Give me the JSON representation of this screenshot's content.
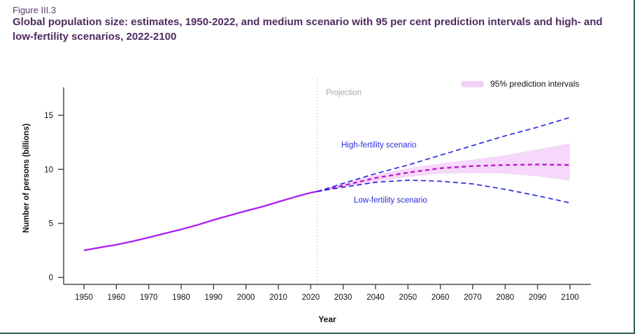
{
  "figure": {
    "label": "Figure III.3",
    "title": "Global population size: estimates, 1950-2022, and medium scenario with 95 per cent prediction intervals and high- and low-fertility scenarios, 2022-2100"
  },
  "legend": {
    "pi_label": "95% prediction intervals"
  },
  "annotations": {
    "projection": "Projection",
    "high_fertility": "High-fertility scenario",
    "low_fertility": "Low-fertility scenario"
  },
  "colors": {
    "title_purple": "#4f2b60",
    "figure_label_purple": "#5d3a73",
    "estimates_line": "#ad1df0",
    "medium_line": "#c517c9",
    "fertility_lines_blue": "#2b2be0",
    "prediction_band": "#f5d8fa",
    "legend_swatch": "#f2cff7",
    "projection_gray": "#a9a9a9",
    "axis_gray": "#4d4d4d",
    "frame_green": "#33604f"
  },
  "chart_data": {
    "type": "line",
    "title": "Global population size: estimates, 1950-2022, and medium scenario with 95 per cent prediction intervals and high- and low-fertility scenarios, 2022-2100",
    "xlabel": "Year",
    "ylabel": "Number of persons (billions)",
    "xlim": [
      1944,
      2106
    ],
    "ylim": [
      0,
      18.3
    ],
    "x_ticks": [
      1950,
      1960,
      1970,
      1980,
      1990,
      2000,
      2010,
      2020,
      2030,
      2040,
      2050,
      2060,
      2070,
      2080,
      2090,
      2100
    ],
    "y_ticks": [
      0,
      5,
      10,
      15
    ],
    "grid": false,
    "legend_position": "top-right",
    "projection_start_year": 2022,
    "series": [
      {
        "name": "Estimates, 1950-2022",
        "role": "estimates",
        "style": "solid",
        "color": "#ad1df0",
        "x": [
          1950,
          1955,
          1960,
          1965,
          1970,
          1975,
          1980,
          1985,
          1990,
          1995,
          2000,
          2005,
          2010,
          2015,
          2020,
          2022
        ],
        "y": [
          2.5,
          2.77,
          3.02,
          3.34,
          3.69,
          4.07,
          4.44,
          4.85,
          5.32,
          5.74,
          6.15,
          6.54,
          6.99,
          7.43,
          7.84,
          7.95
        ]
      },
      {
        "name": "Medium scenario",
        "role": "medium",
        "style": "dashed",
        "color": "#c517c9",
        "x": [
          2022,
          2030,
          2040,
          2050,
          2060,
          2070,
          2080,
          2090,
          2100
        ],
        "y": [
          7.95,
          8.5,
          9.2,
          9.7,
          10.1,
          10.3,
          10.4,
          10.45,
          10.4
        ]
      },
      {
        "name": "High-fertility scenario",
        "role": "high",
        "style": "dashed",
        "color": "#2b2be0",
        "x": [
          2022,
          2030,
          2040,
          2050,
          2060,
          2070,
          2080,
          2090,
          2100
        ],
        "y": [
          7.95,
          8.7,
          9.6,
          10.4,
          11.3,
          12.2,
          13.1,
          13.9,
          14.8
        ]
      },
      {
        "name": "Low-fertility scenario",
        "role": "low",
        "style": "dashed",
        "color": "#2b2be0",
        "x": [
          2022,
          2030,
          2040,
          2050,
          2060,
          2070,
          2080,
          2090,
          2100
        ],
        "y": [
          7.95,
          8.35,
          8.8,
          9.0,
          8.9,
          8.65,
          8.15,
          7.55,
          6.9
        ]
      }
    ],
    "band": {
      "name": "95% prediction intervals",
      "color": "#f5d8fa",
      "x": [
        2022,
        2030,
        2040,
        2050,
        2060,
        2070,
        2080,
        2090,
        2100
      ],
      "upper": [
        7.95,
        8.7,
        9.5,
        10.1,
        10.55,
        10.9,
        11.3,
        11.85,
        12.4
      ],
      "lower": [
        7.95,
        8.35,
        8.85,
        9.3,
        9.6,
        9.65,
        9.6,
        9.35,
        8.95
      ]
    }
  }
}
